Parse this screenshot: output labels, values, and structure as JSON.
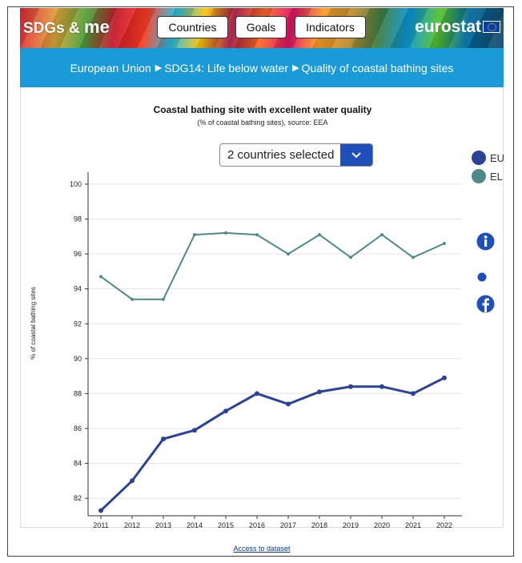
{
  "header": {
    "brand_prefix": "SDGs & ",
    "brand_me": "me",
    "nav": [
      {
        "label": "Countries"
      },
      {
        "label": "Goals"
      },
      {
        "label": "Indicators"
      }
    ],
    "org": "eurostat"
  },
  "breadcrumb": {
    "items": [
      "European Union",
      "SDG14: Life below water",
      "Quality of coastal bathing sites"
    ]
  },
  "selector": {
    "label": "2 countries selected"
  },
  "legend": [
    {
      "label": "EU",
      "color": "#2a4396"
    },
    {
      "label": "EL",
      "color": "#4e8b88"
    }
  ],
  "side_icons": [
    "info-icon",
    "small-dot-icon",
    "facebook-icon"
  ],
  "footer": {
    "access_link": "Access to dataset"
  },
  "chart_data": {
    "type": "line",
    "title": "Coastal bathing site with excellent water quality",
    "subtitle": "(% of coastal bathing sites), source: EEA",
    "ylabel": "% of coastal bathing sites",
    "xlabel": "",
    "x": [
      "2011",
      "2012",
      "2013",
      "2014",
      "2015",
      "2016",
      "2017",
      "2018",
      "2019",
      "2020",
      "2021",
      "2022"
    ],
    "ylim": [
      81,
      100.5
    ],
    "yticks": [
      82,
      84,
      86,
      88,
      90,
      92,
      94,
      96,
      98,
      100
    ],
    "grid": true,
    "series": [
      {
        "name": "EU",
        "color": "#2a4396",
        "values": [
          81.3,
          83.0,
          85.4,
          85.9,
          87.0,
          88.0,
          87.4,
          88.1,
          88.4,
          88.4,
          88.0,
          88.9
        ]
      },
      {
        "name": "EL",
        "color": "#4e8b88",
        "values": [
          94.7,
          93.4,
          93.4,
          97.1,
          97.2,
          97.1,
          96.0,
          97.1,
          95.8,
          97.1,
          95.8,
          96.6
        ]
      }
    ]
  }
}
